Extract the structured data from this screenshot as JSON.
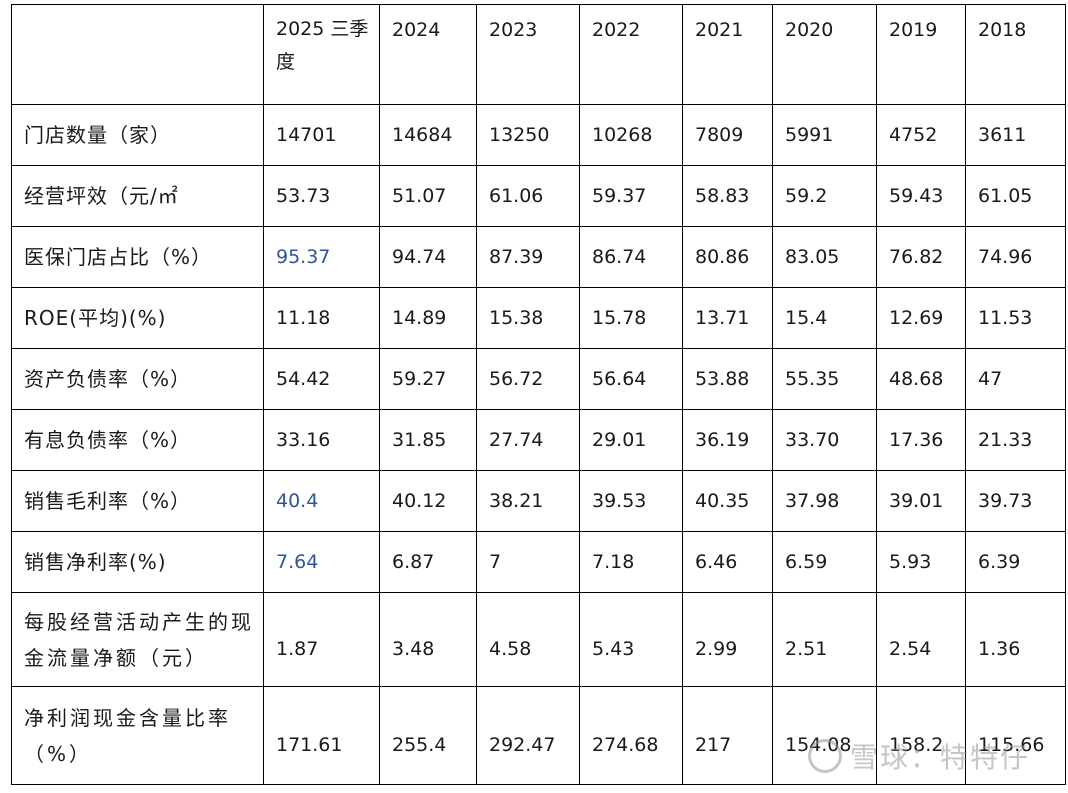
{
  "header": {
    "corner": "",
    "years": [
      "2025 三季度",
      "2024",
      "2023",
      "2022",
      "2021",
      "2020",
      "2019",
      "2018"
    ]
  },
  "rows": [
    {
      "label": "门店数量（家）",
      "values": [
        "14701",
        "14684",
        "13250",
        "10268",
        "7809",
        "5991",
        "4752",
        "3611"
      ]
    },
    {
      "label": "经营坪效（元/㎡",
      "values": [
        "53.73",
        "51.07",
        "61.06",
        "59.37",
        "58.83",
        "59.2",
        "59.43",
        "61.05"
      ]
    },
    {
      "label": "医保门店占比（%）",
      "values": [
        "95.37",
        "94.74",
        "87.39",
        "86.74",
        "80.86",
        "83.05",
        "76.82",
        "74.96"
      ]
    },
    {
      "label": "ROE(平均)(%)",
      "values": [
        "11.18",
        "14.89",
        "15.38",
        "15.78",
        "13.71",
        "15.4",
        "12.69",
        "11.53"
      ]
    },
    {
      "label": "资产负债率（%）",
      "values": [
        "54.42",
        "59.27",
        "56.72",
        "56.64",
        "53.88",
        "55.35",
        "48.68",
        "47"
      ]
    },
    {
      "label": "有息负债率（%）",
      "values": [
        "33.16",
        "31.85",
        "27.74",
        "29.01",
        "36.19",
        "33.70",
        "17.36",
        "21.33"
      ]
    },
    {
      "label": "销售毛利率（%）",
      "values": [
        "40.4",
        "40.12",
        "38.21",
        "39.53",
        "40.35",
        "37.98",
        "39.01",
        "39.73"
      ]
    },
    {
      "label": "销售净利率(%)",
      "values": [
        "7.64",
        "6.87",
        "7",
        "7.18",
        "6.46",
        "6.59",
        "5.93",
        "6.39"
      ]
    },
    {
      "label": "每股经营活动产生的现金流量净额（元）",
      "values": [
        "1.87",
        "3.48",
        "4.58",
        "5.43",
        "2.99",
        "2.51",
        "2.54",
        "1.36"
      ]
    },
    {
      "label": "净利润现金含量比率（%）",
      "values": [
        "171.61",
        "255.4",
        "292.47",
        "274.68",
        "217",
        "154.08",
        "158.2",
        "115.66"
      ]
    }
  ],
  "highlight_color": "#2f5597",
  "watermark": "雪球：特特仔"
}
